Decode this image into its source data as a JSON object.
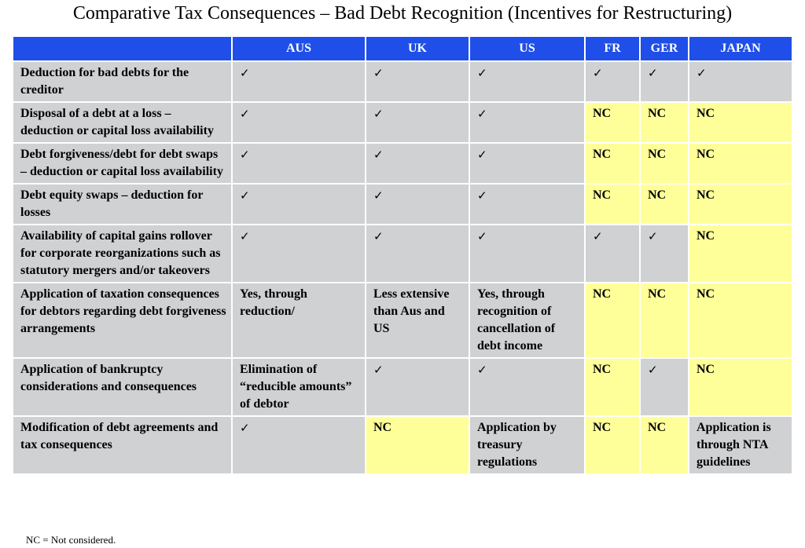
{
  "title": "Comparative Tax Consequences – Bad Debt Recognition (Incentives for Restructuring)",
  "colors": {
    "header": "#1f4fe8",
    "cell": "#cfd1d3",
    "nc_highlight": "#ffff99"
  },
  "check_icon": "checkmark-icon",
  "table": {
    "columns": [
      "",
      "AUS",
      "UK",
      "US",
      "FR",
      "GER",
      "JAPAN"
    ],
    "rows": [
      {
        "label": "Deduction for bad debts for the creditor",
        "cells": [
          "✓",
          "✓",
          "✓",
          "✓",
          "✓",
          "✓"
        ]
      },
      {
        "label": "Disposal of a debt at a loss – deduction or capital loss availability",
        "cells": [
          "✓",
          "✓",
          "✓",
          "NC",
          "NC",
          "NC"
        ]
      },
      {
        "label": "Debt forgiveness/debt for debt swaps – deduction or capital loss availability",
        "cells": [
          "✓",
          "✓",
          "✓",
          "NC",
          "NC",
          "NC"
        ]
      },
      {
        "label": "Debt equity swaps – deduction for losses",
        "cells": [
          "✓",
          "✓",
          "✓",
          "NC",
          "NC",
          "NC"
        ]
      },
      {
        "label": "Availability of capital gains rollover for corporate reorganizations such as statutory mergers and/or takeovers",
        "cells": [
          "✓",
          "✓",
          "✓",
          "✓",
          "✓",
          "NC"
        ]
      },
      {
        "label": "Application of taxation consequences for debtors regarding debt forgiveness arrangements",
        "cells": [
          "Yes, through reduction/",
          "Less extensive than Aus and US",
          "Yes, through recognition of cancellation of debt income",
          "NC",
          "NC",
          "NC"
        ]
      },
      {
        "label": "Application of bankruptcy considerations and consequences",
        "cells": [
          "Elimination of “reducible amounts” of debtor",
          "✓",
          "✓",
          "NC",
          "✓",
          "NC"
        ]
      },
      {
        "label": "Modification of debt agreements and tax consequences",
        "cells": [
          "✓",
          "NC",
          "Application by treasury regulations",
          "NC",
          "NC",
          "Application is through NTA guidelines"
        ]
      }
    ]
  },
  "footnote": "NC = Not considered."
}
